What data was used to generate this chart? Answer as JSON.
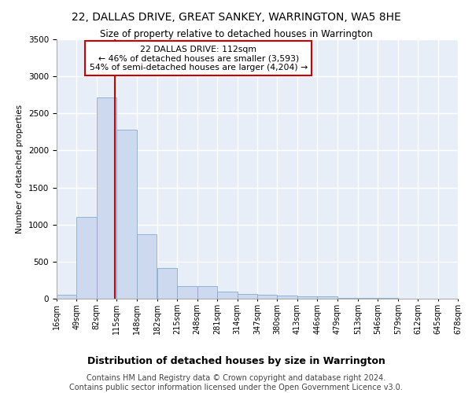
{
  "title": "22, DALLAS DRIVE, GREAT SANKEY, WARRINGTON, WA5 8HE",
  "subtitle": "Size of property relative to detached houses in Warrington",
  "xlabel_bottom": "Distribution of detached houses by size in Warrington",
  "ylabel": "Number of detached properties",
  "bar_color": "#ccd9ee",
  "bar_edge_color": "#88aacc",
  "background_color": "#e8eef8",
  "grid_color": "#ffffff",
  "vline_x": 112,
  "vline_color": "#cc0000",
  "annotation_line1": "22 DALLAS DRIVE: 112sqm",
  "annotation_line2": "← 46% of detached houses are smaller (3,593)",
  "annotation_line3": "54% of semi-detached houses are larger (4,204) →",
  "annotation_box_facecolor": "#ffffff",
  "annotation_box_edgecolor": "#cc0000",
  "bin_edges": [
    16,
    49,
    82,
    115,
    148,
    182,
    215,
    248,
    281,
    314,
    347,
    380,
    413,
    446,
    479,
    513,
    546,
    579,
    612,
    645,
    678
  ],
  "bar_heights": [
    55,
    1100,
    2720,
    2280,
    870,
    415,
    170,
    165,
    95,
    60,
    55,
    40,
    30,
    28,
    15,
    10,
    8,
    5,
    3,
    2
  ],
  "ylim": [
    0,
    3500
  ],
  "yticks": [
    0,
    500,
    1000,
    1500,
    2000,
    2500,
    3000,
    3500
  ],
  "footer": "Contains HM Land Registry data © Crown copyright and database right 2024.\nContains public sector information licensed under the Open Government Licence v3.0.",
  "footer_fontsize": 7,
  "title_fontsize": 10,
  "subtitle_fontsize": 8.5,
  "ylabel_fontsize": 7.5,
  "xlabel_fontsize": 9,
  "tick_fontsize": 7,
  "ytick_fontsize": 7.5
}
